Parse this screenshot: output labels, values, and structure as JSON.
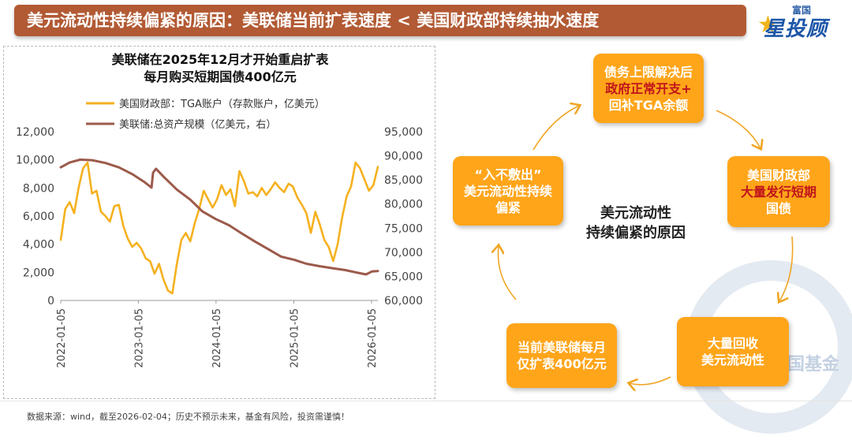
{
  "header": {
    "title": "美元流动性持续偏紧的原因：美联储当前扩表速度 < 美国财政部持续抽水速度",
    "logo_small": "富国",
    "logo_big": "星投顾"
  },
  "chart_data": {
    "type": "line",
    "title_lines": [
      "美联储在2025年12月才开始重启扩表",
      "每月购买短期国债400亿元"
    ],
    "legend": [
      {
        "name": "美国财政部：TGA账户（存款账户，亿美元）",
        "color": "#f5b11f"
      },
      {
        "name": "美联储:总资产规模（亿美元，右）",
        "color": "#9c5a4b"
      }
    ],
    "x_range": [
      "2022-01-05",
      "2026-02-04"
    ],
    "x_ticks": [
      "2022-01-05",
      "2023-01-05",
      "2024-01-05",
      "2025-01-05",
      "2026-01-05"
    ],
    "y_left": {
      "min": 0,
      "max": 12000,
      "ticks": [
        "0",
        "2,000",
        "4,000",
        "6,000",
        "8,000",
        "10,000",
        "12,000"
      ]
    },
    "y_right": {
      "min": 60000,
      "max": 95000,
      "ticks": [
        "60,000",
        "65,000",
        "70,000",
        "75,000",
        "80,000",
        "85,000",
        "90,000",
        "95,000"
      ]
    },
    "series": [
      {
        "name": "美国财政部：TGA账户（存款账户，亿美元）",
        "axis": "left",
        "points": [
          [
            "2022-01-05",
            4300
          ],
          [
            "2022-01-26",
            6500
          ],
          [
            "2022-02-16",
            7000
          ],
          [
            "2022-03-09",
            6200
          ],
          [
            "2022-03-30",
            8000
          ],
          [
            "2022-04-20",
            9400
          ],
          [
            "2022-05-11",
            9800
          ],
          [
            "2022-06-01",
            7600
          ],
          [
            "2022-06-22",
            7800
          ],
          [
            "2022-07-13",
            6300
          ],
          [
            "2022-08-03",
            6000
          ],
          [
            "2022-08-24",
            5600
          ],
          [
            "2022-09-14",
            6700
          ],
          [
            "2022-10-05",
            6800
          ],
          [
            "2022-10-26",
            5300
          ],
          [
            "2022-11-16",
            4400
          ],
          [
            "2022-12-07",
            3800
          ],
          [
            "2022-12-28",
            4100
          ],
          [
            "2023-01-18",
            3700
          ],
          [
            "2023-02-08",
            3000
          ],
          [
            "2023-03-01",
            2800
          ],
          [
            "2023-03-22",
            1900
          ],
          [
            "2023-04-12",
            2600
          ],
          [
            "2023-05-03",
            1500
          ],
          [
            "2023-05-24",
            700
          ],
          [
            "2023-06-14",
            500
          ],
          [
            "2023-07-05",
            2600
          ],
          [
            "2023-07-26",
            4300
          ],
          [
            "2023-08-16",
            4800
          ],
          [
            "2023-09-06",
            4200
          ],
          [
            "2023-09-27",
            5500
          ],
          [
            "2023-10-18",
            6500
          ],
          [
            "2023-11-08",
            7800
          ],
          [
            "2023-11-29",
            7200
          ],
          [
            "2023-12-20",
            6600
          ],
          [
            "2024-01-10",
            7200
          ],
          [
            "2024-01-31",
            8200
          ],
          [
            "2024-02-21",
            7500
          ],
          [
            "2024-03-13",
            7900
          ],
          [
            "2024-04-03",
            6700
          ],
          [
            "2024-04-24",
            9200
          ],
          [
            "2024-05-15",
            8500
          ],
          [
            "2024-06-05",
            7600
          ],
          [
            "2024-06-26",
            7700
          ],
          [
            "2024-07-17",
            7400
          ],
          [
            "2024-08-07",
            8000
          ],
          [
            "2024-08-28",
            7500
          ],
          [
            "2024-09-18",
            7900
          ],
          [
            "2024-10-09",
            8400
          ],
          [
            "2024-10-30",
            8000
          ],
          [
            "2024-11-20",
            7700
          ],
          [
            "2024-12-11",
            8300
          ],
          [
            "2024-12-31",
            8100
          ],
          [
            "2025-01-22",
            7300
          ],
          [
            "2025-02-12",
            6800
          ],
          [
            "2025-03-05",
            6200
          ],
          [
            "2025-03-26",
            4800
          ],
          [
            "2025-04-16",
            6300
          ],
          [
            "2025-05-07",
            5400
          ],
          [
            "2025-05-28",
            4300
          ],
          [
            "2025-06-18",
            3800
          ],
          [
            "2025-07-09",
            2800
          ],
          [
            "2025-07-30",
            4000
          ],
          [
            "2025-08-20",
            5900
          ],
          [
            "2025-09-10",
            7400
          ],
          [
            "2025-10-01",
            8100
          ],
          [
            "2025-10-22",
            9800
          ],
          [
            "2025-11-12",
            9400
          ],
          [
            "2025-12-03",
            8600
          ],
          [
            "2025-12-24",
            7800
          ],
          [
            "2026-01-14",
            8200
          ],
          [
            "2026-02-04",
            9500
          ]
        ]
      },
      {
        "name": "美联储:总资产规模（亿美元，右）",
        "axis": "right",
        "points": [
          [
            "2022-01-05",
            87600
          ],
          [
            "2022-02-16",
            88600
          ],
          [
            "2022-04-06",
            89200
          ],
          [
            "2022-06-01",
            89100
          ],
          [
            "2022-08-03",
            88500
          ],
          [
            "2022-10-05",
            87600
          ],
          [
            "2022-12-07",
            86200
          ],
          [
            "2023-02-01",
            84600
          ],
          [
            "2023-03-08",
            83400
          ],
          [
            "2023-03-15",
            86500
          ],
          [
            "2023-03-29",
            87300
          ],
          [
            "2023-05-03",
            85700
          ],
          [
            "2023-07-05",
            83000
          ],
          [
            "2023-09-06",
            80900
          ],
          [
            "2023-11-01",
            78500
          ],
          [
            "2024-01-03",
            76900
          ],
          [
            "2024-03-06",
            75600
          ],
          [
            "2024-05-01",
            74000
          ],
          [
            "2024-07-03",
            72300
          ],
          [
            "2024-09-04",
            70700
          ],
          [
            "2024-11-06",
            69100
          ],
          [
            "2025-01-08",
            68400
          ],
          [
            "2025-03-05",
            67600
          ],
          [
            "2025-05-07",
            67100
          ],
          [
            "2025-07-02",
            66700
          ],
          [
            "2025-09-03",
            66300
          ],
          [
            "2025-11-05",
            65700
          ],
          [
            "2025-12-10",
            65400
          ],
          [
            "2026-01-07",
            66000
          ],
          [
            "2026-02-04",
            66100
          ]
        ]
      }
    ]
  },
  "cycle": {
    "center_lines": [
      "美元流动性",
      "持续偏紧的原因"
    ],
    "boxes": [
      {
        "id": "debt-ceiling",
        "lines": [
          {
            "t": "债务上限解决后",
            "c": "white"
          },
          {
            "t": "政府正常开支+",
            "c": "red"
          },
          {
            "t": "回补TGA余额",
            "c": "white"
          }
        ]
      },
      {
        "id": "treasury-issue",
        "lines": [
          {
            "t": "美国财政部",
            "c": "white"
          },
          {
            "t": "大量发行短期",
            "c": "red"
          },
          {
            "t": "国债",
            "c": "white"
          }
        ]
      },
      {
        "id": "drain-liquidity",
        "lines": [
          {
            "t": "大量回收",
            "c": "white"
          },
          {
            "t": "美元流动性",
            "c": "white"
          }
        ]
      },
      {
        "id": "fed-expansion",
        "lines": [
          {
            "t": "当前美联储每月",
            "c": "white"
          },
          {
            "t": "仅扩表400亿元",
            "c": "white"
          }
        ]
      },
      {
        "id": "tight-liquidity",
        "lines": [
          {
            "t": "“入不敷出”",
            "c": "white"
          },
          {
            "t": "美元流动性持续",
            "c": "white"
          },
          {
            "t": "偏紧",
            "c": "white"
          }
        ]
      }
    ]
  },
  "footer": {
    "note": "数据来源：wind，截至2026-02-04；历史不预示未来，基金有风险，投资需谨慎！",
    "watermark": "国基金"
  }
}
